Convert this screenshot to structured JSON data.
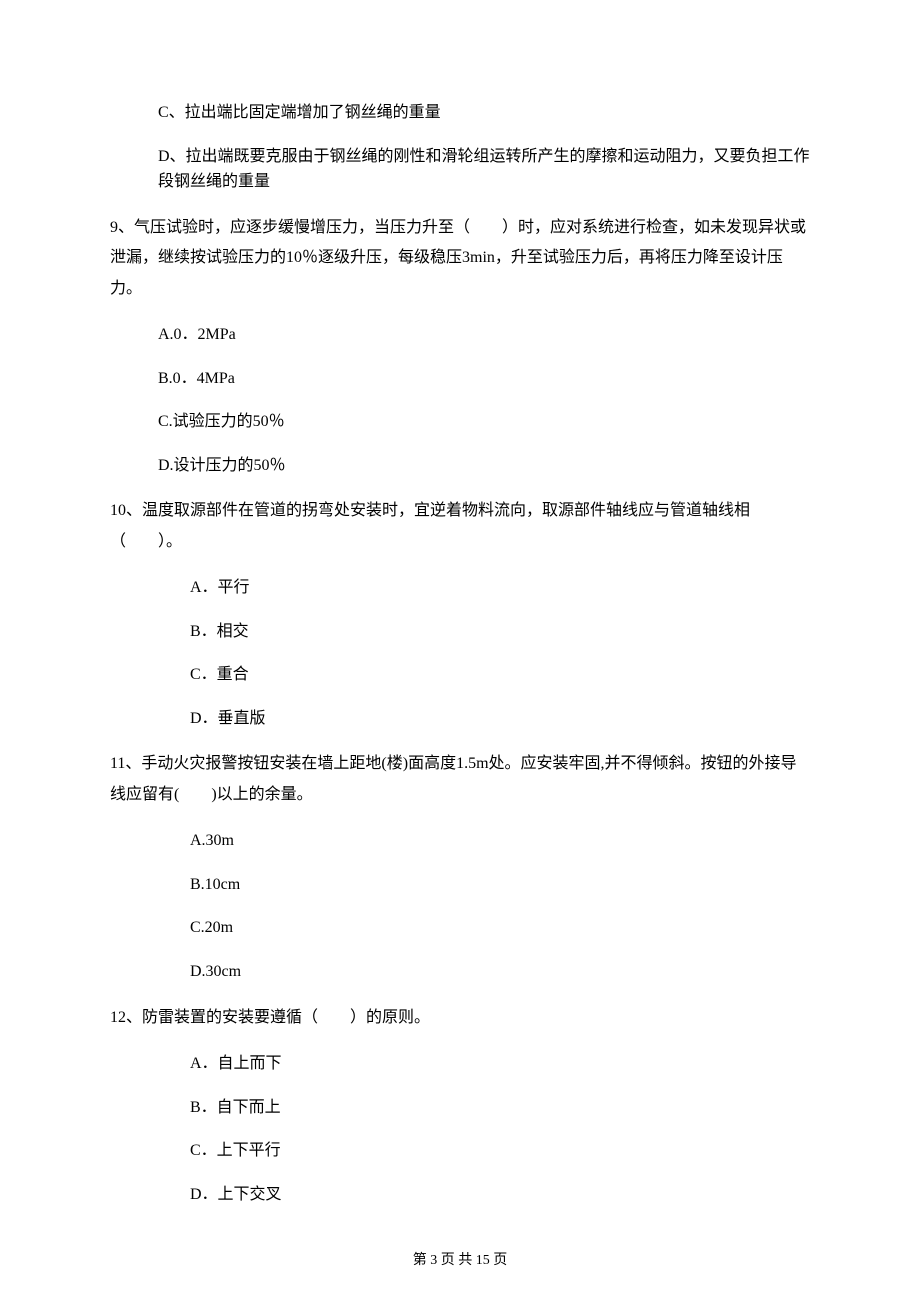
{
  "continuation": {
    "optC": "C、拉出端比固定端增加了钢丝绳的重量",
    "optD": "D、拉出端既要克服由于钢丝绳的刚性和滑轮组运转所产生的摩擦和运动阻力，又要负担工作段钢丝绳的重量"
  },
  "q9": {
    "text": "9、气压试验时，应逐步缓慢增压力，当压力升至（　　）时，应对系统进行检查，如未发现异状或泄漏，继续按试验压力的10％逐级升压，每级稳压3min，升至试验压力后，再将压力降至设计压力。",
    "a": "A.0．2MPa",
    "b": "B.0．4MPa",
    "c": "C.试验压力的50％",
    "d": "D.设计压力的50％"
  },
  "q10": {
    "text": "10、温度取源部件在管道的拐弯处安装时，宜逆着物料流向，取源部件轴线应与管道轴线相（　　）。",
    "a": "A．平行",
    "b": "B．相交",
    "c": "C．重合",
    "d": "D．垂直版"
  },
  "q11": {
    "text": "11、手动火灾报警按钮安装在墙上距地(楼)面高度1.5m处。应安装牢固,并不得倾斜。按钮的外接导线应留有(　　)以上的余量。",
    "a": "A.30m",
    "b": "B.10cm",
    "c": "C.20m",
    "d": "D.30cm"
  },
  "q12": {
    "text": "12、防雷装置的安装要遵循（　　）的原则。",
    "a": "A．自上而下",
    "b": "B．自下而上",
    "c": "C．上下平行",
    "d": "D．上下交叉"
  },
  "footer": "第 3 页 共 15 页"
}
